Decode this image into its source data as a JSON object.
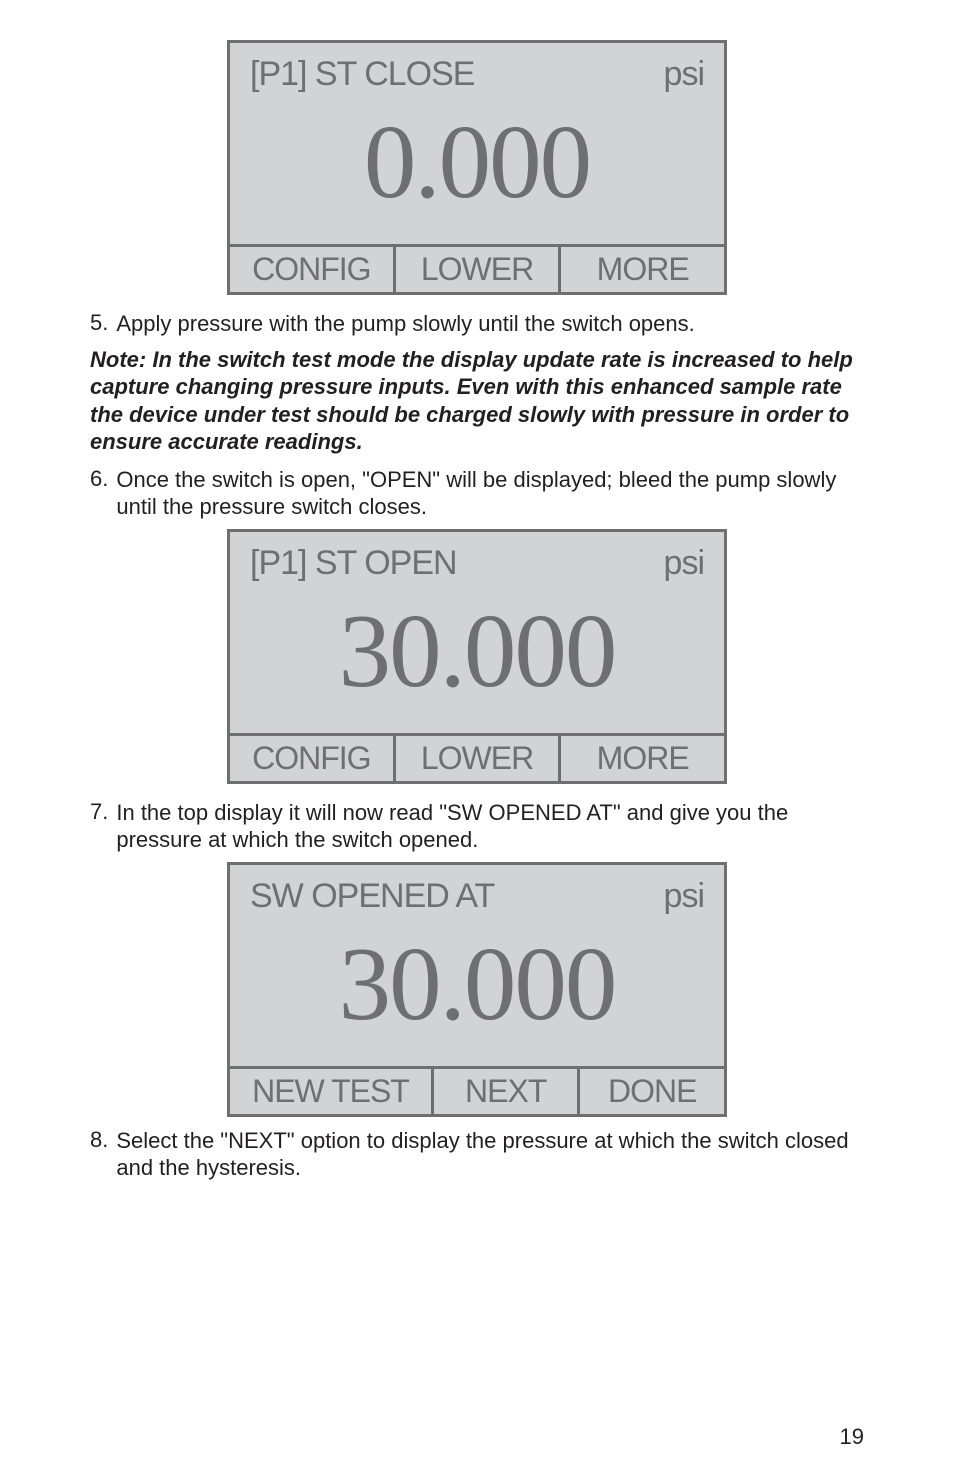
{
  "display1": {
    "header_left": "[P1] ST CLOSE",
    "header_right": "psi",
    "value": "0.000",
    "buttons": [
      "CONFIG",
      "LOWER",
      "MORE"
    ],
    "border_color": "#6f6f71",
    "bg_color": "#d2d3d5",
    "text_color": "#6f6f71"
  },
  "display2": {
    "header_left": "[P1] ST OPEN",
    "header_right": "psi",
    "value": "30.000",
    "buttons": [
      "CONFIG",
      "LOWER",
      "MORE"
    ],
    "border_color": "#6f6f71",
    "bg_color": "#d2d3d5",
    "text_color": "#6f6f71"
  },
  "display3": {
    "header_left": "SW OPENED AT",
    "header_right": "psi",
    "value": "30.000",
    "buttons": [
      "NEW TEST",
      "NEXT",
      "DONE"
    ],
    "border_color": "#6f6f71",
    "bg_color": "#d2d3d5",
    "text_color": "#6f6f71"
  },
  "step5": {
    "number": "5.",
    "text": "Apply pressure with the pump slowly until the switch opens."
  },
  "note": "Note: In the switch test mode the display update rate is increased to help capture changing pressure inputs. Even with this enhanced sample rate the device under test should be charged slowly with pressure in order to ensure accurate readings.",
  "step6": {
    "number": "6.",
    "text": "Once the switch is open, \"OPEN\" will be displayed; bleed the pump slowly until the pressure switch closes."
  },
  "step7": {
    "number": "7.",
    "text": "In the top display it will now read \"SW OPENED AT\" and give you the pressure at which the switch opened."
  },
  "step8": {
    "number": "8.",
    "text": "Select the \"NEXT\" option to display the pressure at which the switch closed and the hysteresis."
  },
  "page_number": "19"
}
